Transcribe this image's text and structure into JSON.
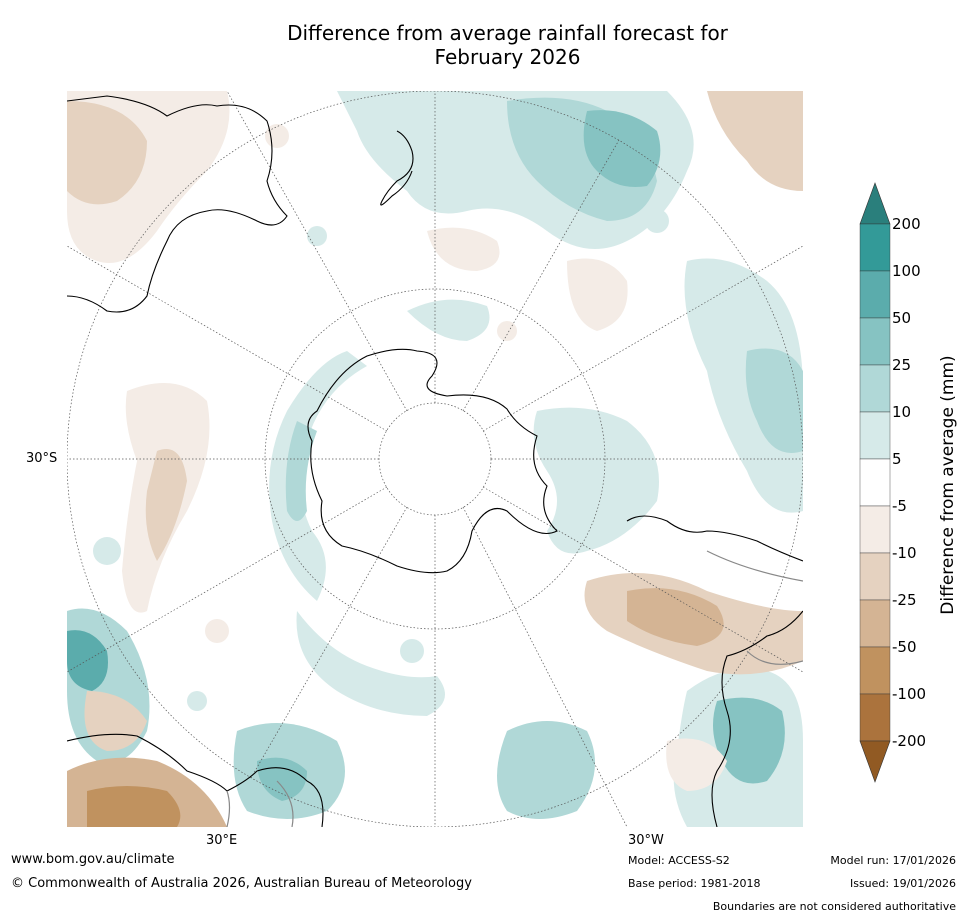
{
  "title": {
    "line1": "Difference from average rainfall forecast for",
    "line2": "February 2026"
  },
  "map": {
    "projection": "south-polar stereographic",
    "labels": {
      "lat30s": "30°S",
      "lon30e": "30°E",
      "lon30w": "30°W"
    }
  },
  "colorbar": {
    "title": "Difference from average (mm)",
    "ticks": [
      "200",
      "100",
      "50",
      "25",
      "10",
      "5",
      "-5",
      "-10",
      "-25",
      "-50",
      "-100",
      "-200"
    ],
    "colors": {
      "over": "#2a7f7c",
      "above_100": "#339a98",
      "50_100": "#5bacac",
      "25_50": "#86c3c2",
      "10_25": "#b0d8d7",
      "5_10": "#d6eae9",
      "neutral": "#ffffff",
      "m5_m10": "#f4ece6",
      "m10_m25": "#e5d2c0",
      "m25_m50": "#d4b494",
      "m50_m100": "#c0925f",
      "m100_m200": "#ab733d",
      "under": "#915a23"
    }
  },
  "footer": {
    "website": "www.bom.gov.au/climate",
    "copyright": "© Commonwealth of Australia 2026, Australian Bureau of Meteorology",
    "model": "Model: ACCESS-S2",
    "base_period": "Base period: 1981-2018",
    "model_run": "Model run: 17/01/2026",
    "issued": "Issued: 19/01/2026",
    "disclaimer": "Boundaries are not considered authoritative"
  }
}
